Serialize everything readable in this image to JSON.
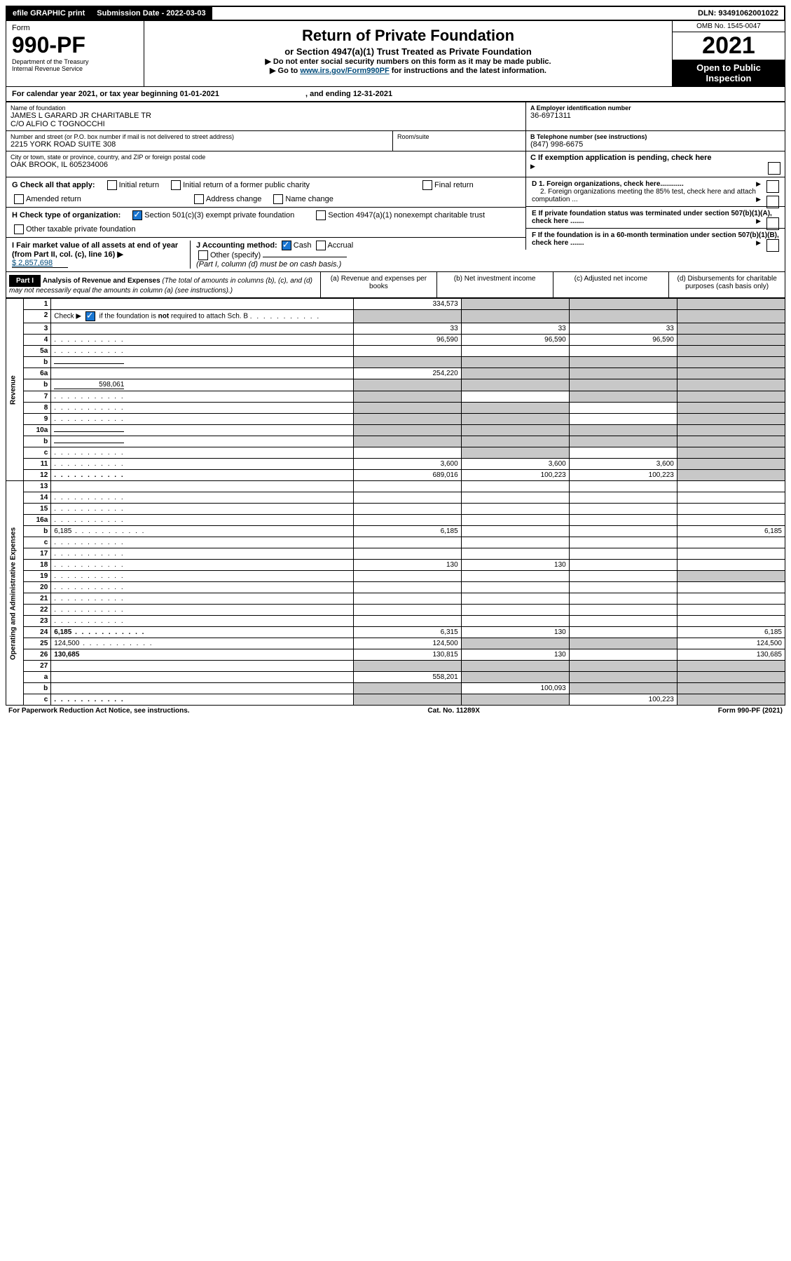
{
  "top": {
    "efile": "efile GRAPHIC print",
    "submission_label": "Submission Date - 2022-03-03",
    "dln": "DLN: 93491062001022"
  },
  "header": {
    "form": "Form",
    "form_no": "990-PF",
    "dept": "Department of the Treasury",
    "irs": "Internal Revenue Service",
    "title": "Return of Private Foundation",
    "subtitle": "or Section 4947(a)(1) Trust Treated as Private Foundation",
    "note1": "▶ Do not enter social security numbers on this form as it may be made public.",
    "note2_pre": "▶ Go to ",
    "note2_link": "www.irs.gov/Form990PF",
    "note2_post": " for instructions and the latest information.",
    "omb": "OMB No. 1545-0047",
    "year": "2021",
    "inspect": "Open to Public Inspection"
  },
  "cal": {
    "text_a": "For calendar year 2021, or tax year beginning 01-01-2021",
    "text_b": ", and ending 12-31-2021"
  },
  "name": {
    "label": "Name of foundation",
    "val1": "JAMES L GARARD JR CHARITABLE TR",
    "val2": "C/O ALFIO C TOGNOCCHI"
  },
  "ein": {
    "label": "A Employer identification number",
    "val": "36-6971311"
  },
  "addr": {
    "label": "Number and street (or P.O. box number if mail is not delivered to street address)",
    "val": "2215 YORK ROAD SUITE 308",
    "room_label": "Room/suite"
  },
  "phone": {
    "label": "B Telephone number (see instructions)",
    "val": "(847) 998-6675"
  },
  "city": {
    "label": "City or town, state or province, country, and ZIP or foreign postal code",
    "val": "OAK BROOK, IL  605234006"
  },
  "c_label": "C If exemption application is pending, check here",
  "g": {
    "label": "G Check all that apply:",
    "opts": [
      "Initial return",
      "Initial return of a former public charity",
      "Final return",
      "Amended return",
      "Address change",
      "Name change"
    ]
  },
  "d": {
    "d1": "D 1. Foreign organizations, check here............",
    "d2": "2. Foreign organizations meeting the 85% test, check here and attach computation ..."
  },
  "h": {
    "label": "H Check type of organization:",
    "o1": "Section 501(c)(3) exempt private foundation",
    "o2": "Section 4947(a)(1) nonexempt charitable trust",
    "o3": "Other taxable private foundation"
  },
  "e_label": "E  If private foundation status was terminated under section 507(b)(1)(A), check here .......",
  "i": {
    "label": "I Fair market value of all assets at end of year (from Part II, col. (c), line 16) ▶",
    "val": "$  2,857,698"
  },
  "j": {
    "label": "J Accounting method:",
    "o1": "Cash",
    "o2": "Accrual",
    "o3": "Other (specify)",
    "note": "(Part I, column (d) must be on cash basis.)"
  },
  "f_label": "F  If the foundation is in a 60-month termination under section 507(b)(1)(B), check here .......",
  "part1": {
    "label": "Part I",
    "title": "Analysis of Revenue and Expenses",
    "title_note": " (The total of amounts in columns (b), (c), and (d) may not necessarily equal the amounts in column (a) (see instructions).)",
    "col_a": "(a) Revenue and expenses per books",
    "col_b": "(b) Net investment income",
    "col_c": "(c) Adjusted net income",
    "col_d": "(d) Disbursements for charitable purposes (cash basis only)"
  },
  "side_rev": "Revenue",
  "side_exp": "Operating and Administrative Expenses",
  "rows": [
    {
      "n": "1",
      "d": "",
      "a": "334,573",
      "b": "",
      "c": "",
      "shade_b": true,
      "shade_c": true,
      "shade_d": true
    },
    {
      "n": "2",
      "d": "",
      "has_check": true,
      "a": "",
      "b": "",
      "c": "",
      "shade_a": true,
      "shade_b": true,
      "shade_c": true,
      "shade_d": true,
      "dots": true
    },
    {
      "n": "3",
      "d": "",
      "a": "33",
      "b": "33",
      "c": "33",
      "shade_d": true
    },
    {
      "n": "4",
      "d": "",
      "a": "96,590",
      "b": "96,590",
      "c": "96,590",
      "shade_d": true,
      "dots": true
    },
    {
      "n": "5a",
      "d": "",
      "a": "",
      "b": "",
      "c": "",
      "shade_d": true,
      "dots": true
    },
    {
      "n": "b",
      "d": "",
      "a": "",
      "b": "",
      "c": "",
      "shade_a": true,
      "shade_b": true,
      "shade_c": true,
      "shade_d": true,
      "inline_box": true
    },
    {
      "n": "6a",
      "d": "",
      "a": "254,220",
      "b": "",
      "c": "",
      "shade_b": true,
      "shade_c": true,
      "shade_d": true
    },
    {
      "n": "b",
      "d": "",
      "inline_val": "598,061",
      "a": "",
      "b": "",
      "c": "",
      "shade_a": true,
      "shade_b": true,
      "shade_c": true,
      "shade_d": true
    },
    {
      "n": "7",
      "d": "",
      "a": "",
      "b": "",
      "c": "",
      "shade_a": true,
      "shade_c": true,
      "shade_d": true,
      "dots": true
    },
    {
      "n": "8",
      "d": "",
      "a": "",
      "b": "",
      "c": "",
      "shade_a": true,
      "shade_b": true,
      "shade_d": true,
      "dots": true
    },
    {
      "n": "9",
      "d": "",
      "a": "",
      "b": "",
      "c": "",
      "shade_a": true,
      "shade_b": true,
      "shade_d": true,
      "dots": true
    },
    {
      "n": "10a",
      "d": "",
      "a": "",
      "b": "",
      "c": "",
      "shade_a": true,
      "shade_b": true,
      "shade_c": true,
      "shade_d": true,
      "inline_box": true
    },
    {
      "n": "b",
      "d": "",
      "a": "",
      "b": "",
      "c": "",
      "shade_a": true,
      "shade_b": true,
      "shade_c": true,
      "shade_d": true,
      "inline_box": true,
      "dots": true
    },
    {
      "n": "c",
      "d": "",
      "a": "",
      "b": "",
      "c": "",
      "shade_b": true,
      "shade_d": true,
      "dots": true
    },
    {
      "n": "11",
      "d": "",
      "a": "3,600",
      "b": "3,600",
      "c": "3,600",
      "shade_d": true,
      "dots": true
    },
    {
      "n": "12",
      "d": "",
      "bold": true,
      "a": "689,016",
      "b": "100,223",
      "c": "100,223",
      "shade_d": true,
      "dots": true
    },
    {
      "n": "13",
      "d": "",
      "a": "",
      "b": "",
      "c": ""
    },
    {
      "n": "14",
      "d": "",
      "a": "",
      "b": "",
      "c": "",
      "dots": true
    },
    {
      "n": "15",
      "d": "",
      "a": "",
      "b": "",
      "c": "",
      "dots": true
    },
    {
      "n": "16a",
      "d": "",
      "a": "",
      "b": "",
      "c": "",
      "dots": true
    },
    {
      "n": "b",
      "d": "6,185",
      "a": "6,185",
      "b": "",
      "c": "",
      "dots": true
    },
    {
      "n": "c",
      "d": "",
      "a": "",
      "b": "",
      "c": "",
      "dots": true
    },
    {
      "n": "17",
      "d": "",
      "a": "",
      "b": "",
      "c": "",
      "dots": true
    },
    {
      "n": "18",
      "d": "",
      "a": "130",
      "b": "130",
      "c": "",
      "dots": true
    },
    {
      "n": "19",
      "d": "",
      "a": "",
      "b": "",
      "c": "",
      "shade_d": true,
      "dots": true
    },
    {
      "n": "20",
      "d": "",
      "a": "",
      "b": "",
      "c": "",
      "dots": true
    },
    {
      "n": "21",
      "d": "",
      "a": "",
      "b": "",
      "c": "",
      "dots": true
    },
    {
      "n": "22",
      "d": "",
      "a": "",
      "b": "",
      "c": "",
      "dots": true
    },
    {
      "n": "23",
      "d": "",
      "a": "",
      "b": "",
      "c": "",
      "dots": true
    },
    {
      "n": "24",
      "d": "6,185",
      "bold": true,
      "a": "6,315",
      "b": "130",
      "c": "",
      "dots": true
    },
    {
      "n": "25",
      "d": "124,500",
      "a": "124,500",
      "b": "",
      "c": "",
      "shade_b": true,
      "shade_c": true,
      "dots": true
    },
    {
      "n": "26",
      "d": "130,685",
      "bold": true,
      "a": "130,815",
      "b": "130",
      "c": ""
    },
    {
      "n": "27",
      "d": "",
      "bold": true,
      "a": "",
      "b": "",
      "c": "",
      "shade_a": true,
      "shade_b": true,
      "shade_c": true,
      "shade_d": true
    },
    {
      "n": "a",
      "d": "",
      "bold": true,
      "a": "558,201",
      "b": "",
      "c": "",
      "shade_b": true,
      "shade_c": true,
      "shade_d": true
    },
    {
      "n": "b",
      "d": "",
      "bold": true,
      "a": "",
      "b": "100,093",
      "c": "",
      "shade_a": true,
      "shade_c": true,
      "shade_d": true
    },
    {
      "n": "c",
      "d": "",
      "bold": true,
      "a": "",
      "b": "",
      "c": "100,223",
      "shade_a": true,
      "shade_b": true,
      "shade_d": true,
      "dots": true
    }
  ],
  "footer": {
    "left": "For Paperwork Reduction Act Notice, see instructions.",
    "mid": "Cat. No. 11289X",
    "right": "Form 990-PF (2021)"
  }
}
